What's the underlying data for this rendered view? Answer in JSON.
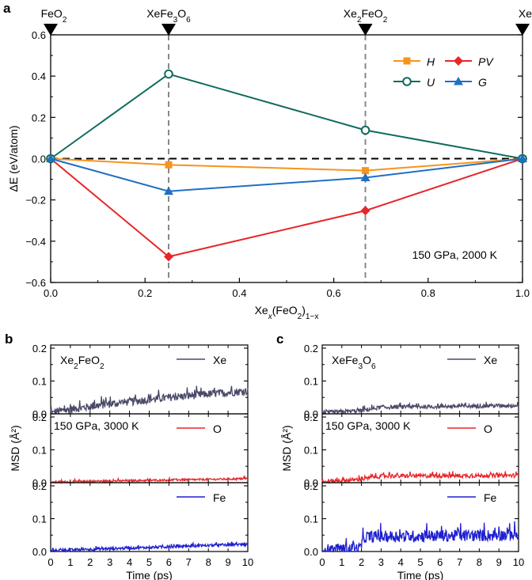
{
  "chart_data": [
    {
      "panel": "a",
      "type": "line",
      "xlabel_base": "Xe",
      "xlabel_sub1": "x",
      "xlabel_mid": "(FeO",
      "xlabel_sub2": "2",
      "xlabel_end": ")",
      "xlabel_sub3": "1−x",
      "ylabel": "ΔE (eV/atom)",
      "xlim": [
        0,
        1
      ],
      "ylim": [
        -0.6,
        0.6
      ],
      "xticks": [
        "0.0",
        "0.2",
        "0.4",
        "0.6",
        "0.8",
        "1.0"
      ],
      "yticks": [
        "−0.6",
        "−0.4",
        "−0.2",
        "0.0",
        "0.2",
        "0.4",
        "0.6"
      ],
      "annotation": "150 GPa, 2000 K",
      "compositions": [
        {
          "x": 0,
          "base": "FeO",
          "sub": "2",
          "rest": "",
          "sub2": "",
          "rest2": ""
        },
        {
          "x": 0.25,
          "base": "XeFe",
          "sub": "3",
          "rest": "O",
          "sub2": "6",
          "rest2": ""
        },
        {
          "x": 0.667,
          "base": "Xe",
          "sub": "2",
          "rest": "FeO",
          "sub2": "2",
          "rest2": ""
        },
        {
          "x": 1,
          "base": "Xe",
          "sub": "",
          "rest": "",
          "sub2": "",
          "rest2": ""
        }
      ],
      "vlines": [
        0.25,
        0.667
      ],
      "x": [
        0,
        0.25,
        0.667,
        1
      ],
      "series": [
        {
          "name": "H",
          "color": "#f7941d",
          "marker": "square",
          "values": [
            0,
            -0.03,
            -0.058,
            0
          ]
        },
        {
          "name": "PV",
          "color": "#e8262a",
          "marker": "diamond",
          "values": [
            0,
            -0.475,
            -0.252,
            0
          ]
        },
        {
          "name": "U",
          "color": "#0f6b5e",
          "marker": "circle-open",
          "values": [
            0,
            0.41,
            0.138,
            0
          ]
        },
        {
          "name": "G",
          "color": "#1f6fc5",
          "marker": "triangle",
          "values": [
            0,
            -0.158,
            -0.092,
            0
          ]
        }
      ],
      "legend_placement": "top-right",
      "zero_line": "dashed"
    },
    {
      "panel": "b",
      "type": "line",
      "title_base": "Xe",
      "title_sub1": "2",
      "title_mid": "FeO",
      "title_sub2": "2",
      "annotation": "150 GPa, 3000 K",
      "xlabel": "Time (ps)",
      "ylabel": "MSD (Å²)",
      "xlim": [
        0,
        10
      ],
      "ylim": [
        0,
        0.2
      ],
      "xticks": [
        "0",
        "1",
        "2",
        "3",
        "4",
        "5",
        "6",
        "7",
        "8",
        "9",
        "10"
      ],
      "yticks": [
        "0.0",
        "0.1",
        "0.2"
      ],
      "series": [
        {
          "name": "Xe",
          "color": "#4a4a68",
          "trend": [
            [
              0,
              0.005
            ],
            [
              3,
              0.03
            ],
            [
              6,
              0.05
            ],
            [
              10,
              0.07
            ]
          ],
          "noise": 0.012
        },
        {
          "name": "O",
          "color": "#e8262a",
          "trend": [
            [
              0,
              0.002
            ],
            [
              10,
              0.012
            ]
          ],
          "noise": 0.003
        },
        {
          "name": "Fe",
          "color": "#1f1fd0",
          "trend": [
            [
              0,
              0.003
            ],
            [
              10,
              0.022
            ]
          ],
          "noise": 0.004
        }
      ]
    },
    {
      "panel": "c",
      "type": "line",
      "title_base": "XeFe",
      "title_sub1": "3",
      "title_mid": "O",
      "title_sub2": "6",
      "annotation": "150 GPa, 3000 K",
      "xlabel": "Time (ps)",
      "ylabel": "MSD (Å²)",
      "xlim": [
        0,
        10
      ],
      "ylim": [
        0,
        0.2
      ],
      "xticks": [
        "0",
        "1",
        "2",
        "3",
        "4",
        "5",
        "6",
        "7",
        "8",
        "9",
        "10"
      ],
      "yticks": [
        "0.0",
        "0.1",
        "0.2"
      ],
      "series": [
        {
          "name": "Xe",
          "color": "#4a4a68",
          "trend": [
            [
              0,
              0.003
            ],
            [
              2,
              0.01
            ],
            [
              3,
              0.02
            ],
            [
              10,
              0.025
            ]
          ],
          "noise": 0.006
        },
        {
          "name": "O",
          "color": "#e8262a",
          "trend": [
            [
              0,
              0.003
            ],
            [
              2,
              0.01
            ],
            [
              3,
              0.02
            ],
            [
              10,
              0.022
            ]
          ],
          "noise": 0.006
        },
        {
          "name": "Fe",
          "color": "#1f1fd0",
          "trend": [
            [
              0,
              0.005
            ],
            [
              1.9,
              0.008
            ],
            [
              2.2,
              0.045
            ],
            [
              10,
              0.05
            ]
          ],
          "noise": 0.018
        }
      ]
    }
  ]
}
